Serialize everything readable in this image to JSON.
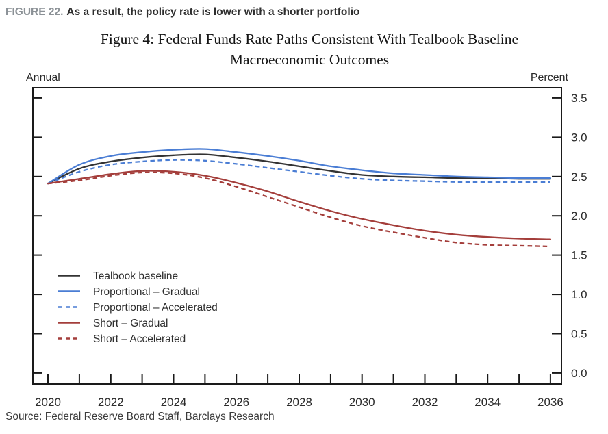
{
  "header": {
    "figure_label": "FIGURE 22.",
    "headline": "As a result, the policy rate is lower with a shorter portfolio"
  },
  "chart": {
    "title_line1": "Figure 4: Federal Funds Rate Paths Consistent With Tealbook Baseline",
    "title_line2": "Macroeconomic Outcomes",
    "left_axis_unit": "Annual",
    "right_axis_unit": "Percent"
  },
  "chart_data": {
    "type": "line",
    "title": "Figure 4: Federal Funds Rate Paths Consistent With Tealbook Baseline Macroeconomic Outcomes",
    "xlabel": "Annual",
    "ylabel": "Percent",
    "grid": false,
    "legend_position": "inside-left",
    "xlim": [
      2019.52,
      2036.35
    ],
    "ylim": [
      -0.14,
      3.63
    ],
    "x": [
      2020,
      2021,
      2022,
      2023,
      2024,
      2025,
      2026,
      2027,
      2028,
      2029,
      2030,
      2031,
      2032,
      2033,
      2034,
      2035,
      2036
    ],
    "x_tick_years": [
      2020,
      2021,
      2022,
      2023,
      2024,
      2025,
      2026,
      2027,
      2028,
      2029,
      2030,
      2031,
      2032,
      2033,
      2034,
      2035,
      2036
    ],
    "x_label_years": [
      2020,
      2022,
      2024,
      2026,
      2028,
      2030,
      2032,
      2034,
      2036
    ],
    "y_ticks": [
      0.0,
      0.5,
      1.0,
      1.5,
      2.0,
      2.5,
      3.0,
      3.5
    ],
    "series": [
      {
        "name": "Tealbook baseline",
        "color": "#333333",
        "dashed": false,
        "values": [
          2.41,
          2.6,
          2.69,
          2.74,
          2.77,
          2.78,
          2.74,
          2.69,
          2.63,
          2.57,
          2.52,
          2.5,
          2.49,
          2.48,
          2.48,
          2.47,
          2.47
        ]
      },
      {
        "name": "Proportional – Gradual",
        "color": "#4a7dd4",
        "dashed": false,
        "values": [
          2.41,
          2.65,
          2.76,
          2.81,
          2.84,
          2.85,
          2.81,
          2.76,
          2.7,
          2.63,
          2.58,
          2.54,
          2.52,
          2.5,
          2.49,
          2.48,
          2.48
        ]
      },
      {
        "name": "Proportional – Accelerated",
        "color": "#4a7dd4",
        "dashed": true,
        "values": [
          2.41,
          2.56,
          2.65,
          2.69,
          2.71,
          2.7,
          2.66,
          2.61,
          2.56,
          2.51,
          2.47,
          2.45,
          2.44,
          2.43,
          2.43,
          2.43,
          2.43
        ]
      },
      {
        "name": "Short – Gradual",
        "color": "#a43e3b",
        "dashed": false,
        "values": [
          2.41,
          2.47,
          2.53,
          2.57,
          2.56,
          2.51,
          2.42,
          2.31,
          2.18,
          2.06,
          1.96,
          1.88,
          1.81,
          1.76,
          1.73,
          1.71,
          1.7
        ]
      },
      {
        "name": "Short – Accelerated",
        "color": "#a43e3b",
        "dashed": true,
        "values": [
          2.41,
          2.45,
          2.51,
          2.55,
          2.54,
          2.48,
          2.37,
          2.24,
          2.11,
          1.98,
          1.87,
          1.79,
          1.72,
          1.66,
          1.63,
          1.62,
          1.61
        ]
      }
    ]
  },
  "footer": {
    "source": "Source: Federal Reserve Board Staff, Barclays Research"
  }
}
